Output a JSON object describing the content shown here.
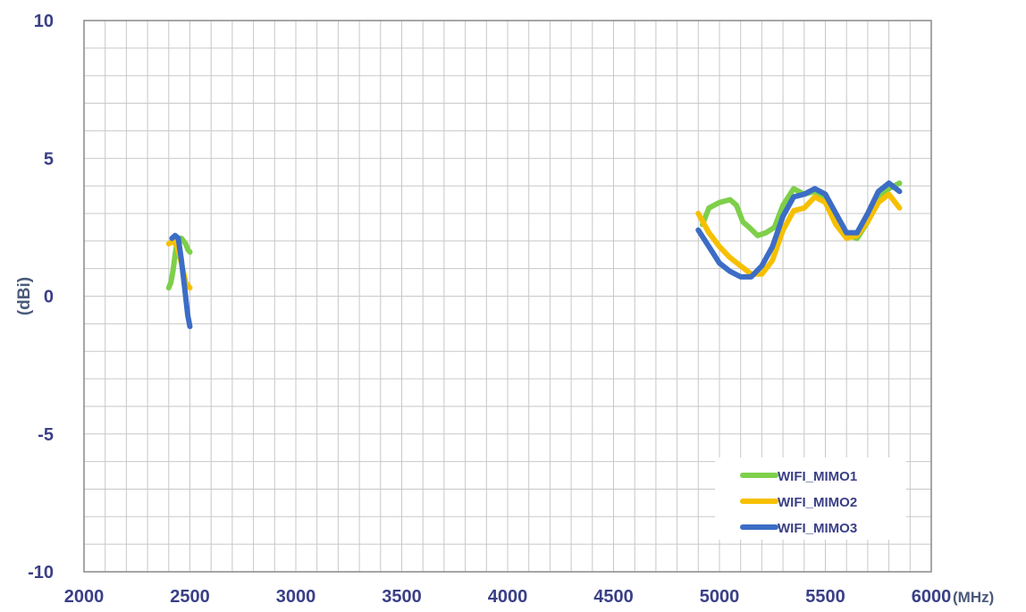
{
  "chart_data": {
    "type": "line",
    "xlabel": "(MHz)",
    "ylabel": "(dBi)",
    "xlim": [
      2000,
      6000
    ],
    "ylim": [
      -10,
      10
    ],
    "x_ticks": [
      2000,
      2500,
      3000,
      3500,
      4000,
      4500,
      5000,
      5500,
      6000
    ],
    "y_ticks": [
      10,
      5,
      0,
      -5,
      -10
    ],
    "x_tick_labels": [
      "2000",
      "2500",
      "3000",
      "3500",
      "4000",
      "4500",
      "5000",
      "5500",
      "6000"
    ],
    "y_tick_labels": [
      "10",
      "5",
      "0",
      "-5",
      "-10"
    ],
    "minor_x_step": 100,
    "minor_y_step": 1,
    "grid": true,
    "legend_position": "bottom-right",
    "colors": {
      "axis_text": "#3a3f86",
      "ylabel": "#4a5a7a",
      "grid": "#c8c8c8",
      "frame": "#888888"
    },
    "series": [
      {
        "name": "WIFI_MIMO1",
        "color": "#7ecf4a",
        "segments": [
          [
            [
              2400,
              0.3
            ],
            [
              2410,
              0.5
            ],
            [
              2420,
              0.9
            ],
            [
              2430,
              1.5
            ],
            [
              2440,
              2.0
            ],
            [
              2450,
              2.1
            ],
            [
              2460,
              2.1
            ],
            [
              2470,
              2.0
            ],
            [
              2480,
              1.9
            ],
            [
              2490,
              1.7
            ],
            [
              2500,
              1.6
            ]
          ],
          [
            [
              4920,
              2.6
            ],
            [
              4950,
              3.2
            ],
            [
              5000,
              3.4
            ],
            [
              5050,
              3.5
            ],
            [
              5080,
              3.3
            ],
            [
              5110,
              2.7
            ],
            [
              5140,
              2.5
            ],
            [
              5180,
              2.2
            ],
            [
              5220,
              2.3
            ],
            [
              5260,
              2.5
            ],
            [
              5300,
              3.3
            ],
            [
              5350,
              3.9
            ],
            [
              5400,
              3.7
            ],
            [
              5450,
              3.8
            ],
            [
              5500,
              3.5
            ],
            [
              5550,
              2.9
            ],
            [
              5600,
              2.2
            ],
            [
              5650,
              2.1
            ],
            [
              5700,
              2.7
            ],
            [
              5750,
              3.6
            ],
            [
              5800,
              3.9
            ],
            [
              5850,
              4.1
            ]
          ]
        ]
      },
      {
        "name": "WIFI_MIMO2",
        "color": "#f6c000",
        "segments": [
          [
            [
              2400,
              1.9
            ],
            [
              2420,
              2.0
            ],
            [
              2440,
              1.8
            ],
            [
              2460,
              1.2
            ],
            [
              2480,
              0.5
            ],
            [
              2500,
              0.3
            ]
          ],
          [
            [
              4900,
              3.0
            ],
            [
              4950,
              2.3
            ],
            [
              5000,
              1.8
            ],
            [
              5050,
              1.4
            ],
            [
              5100,
              1.1
            ],
            [
              5150,
              0.8
            ],
            [
              5200,
              0.8
            ],
            [
              5250,
              1.3
            ],
            [
              5300,
              2.4
            ],
            [
              5350,
              3.1
            ],
            [
              5400,
              3.2
            ],
            [
              5450,
              3.6
            ],
            [
              5500,
              3.4
            ],
            [
              5550,
              2.6
            ],
            [
              5600,
              2.1
            ],
            [
              5650,
              2.2
            ],
            [
              5700,
              2.7
            ],
            [
              5750,
              3.4
            ],
            [
              5800,
              3.7
            ],
            [
              5850,
              3.2
            ]
          ]
        ]
      },
      {
        "name": "WIFI_MIMO3",
        "color": "#3c6dc5",
        "segments": [
          [
            [
              2415,
              2.1
            ],
            [
              2430,
              2.2
            ],
            [
              2445,
              2.1
            ],
            [
              2460,
              1.3
            ],
            [
              2475,
              0.3
            ],
            [
              2490,
              -0.7
            ],
            [
              2500,
              -1.1
            ]
          ],
          [
            [
              4900,
              2.4
            ],
            [
              4950,
              1.8
            ],
            [
              5000,
              1.2
            ],
            [
              5050,
              0.9
            ],
            [
              5100,
              0.7
            ],
            [
              5150,
              0.7
            ],
            [
              5200,
              1.1
            ],
            [
              5250,
              1.8
            ],
            [
              5300,
              2.9
            ],
            [
              5350,
              3.6
            ],
            [
              5400,
              3.7
            ],
            [
              5450,
              3.9
            ],
            [
              5500,
              3.7
            ],
            [
              5550,
              3.0
            ],
            [
              5600,
              2.3
            ],
            [
              5650,
              2.3
            ],
            [
              5700,
              3.0
            ],
            [
              5750,
              3.8
            ],
            [
              5800,
              4.1
            ],
            [
              5850,
              3.8
            ]
          ]
        ]
      }
    ]
  }
}
